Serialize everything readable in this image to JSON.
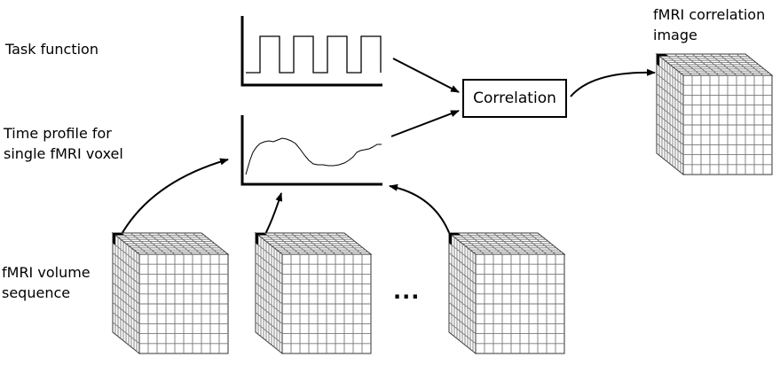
{
  "labels": {
    "task_function": "Task function",
    "time_profile_line1": "Time profile for",
    "time_profile_line2": "single fMRI voxel",
    "volume_seq_line1": "fMRI volume",
    "volume_seq_line2": "sequence",
    "corr_image_line1": "fMRI correlation",
    "corr_image_line2": "image",
    "ellipsis": "...",
    "correlation_box": "Correlation"
  },
  "colors": {
    "line": "#000000",
    "cube_fill": "#ffffff",
    "cube_grid": "#777777",
    "voxel_mark": "#000000"
  }
}
